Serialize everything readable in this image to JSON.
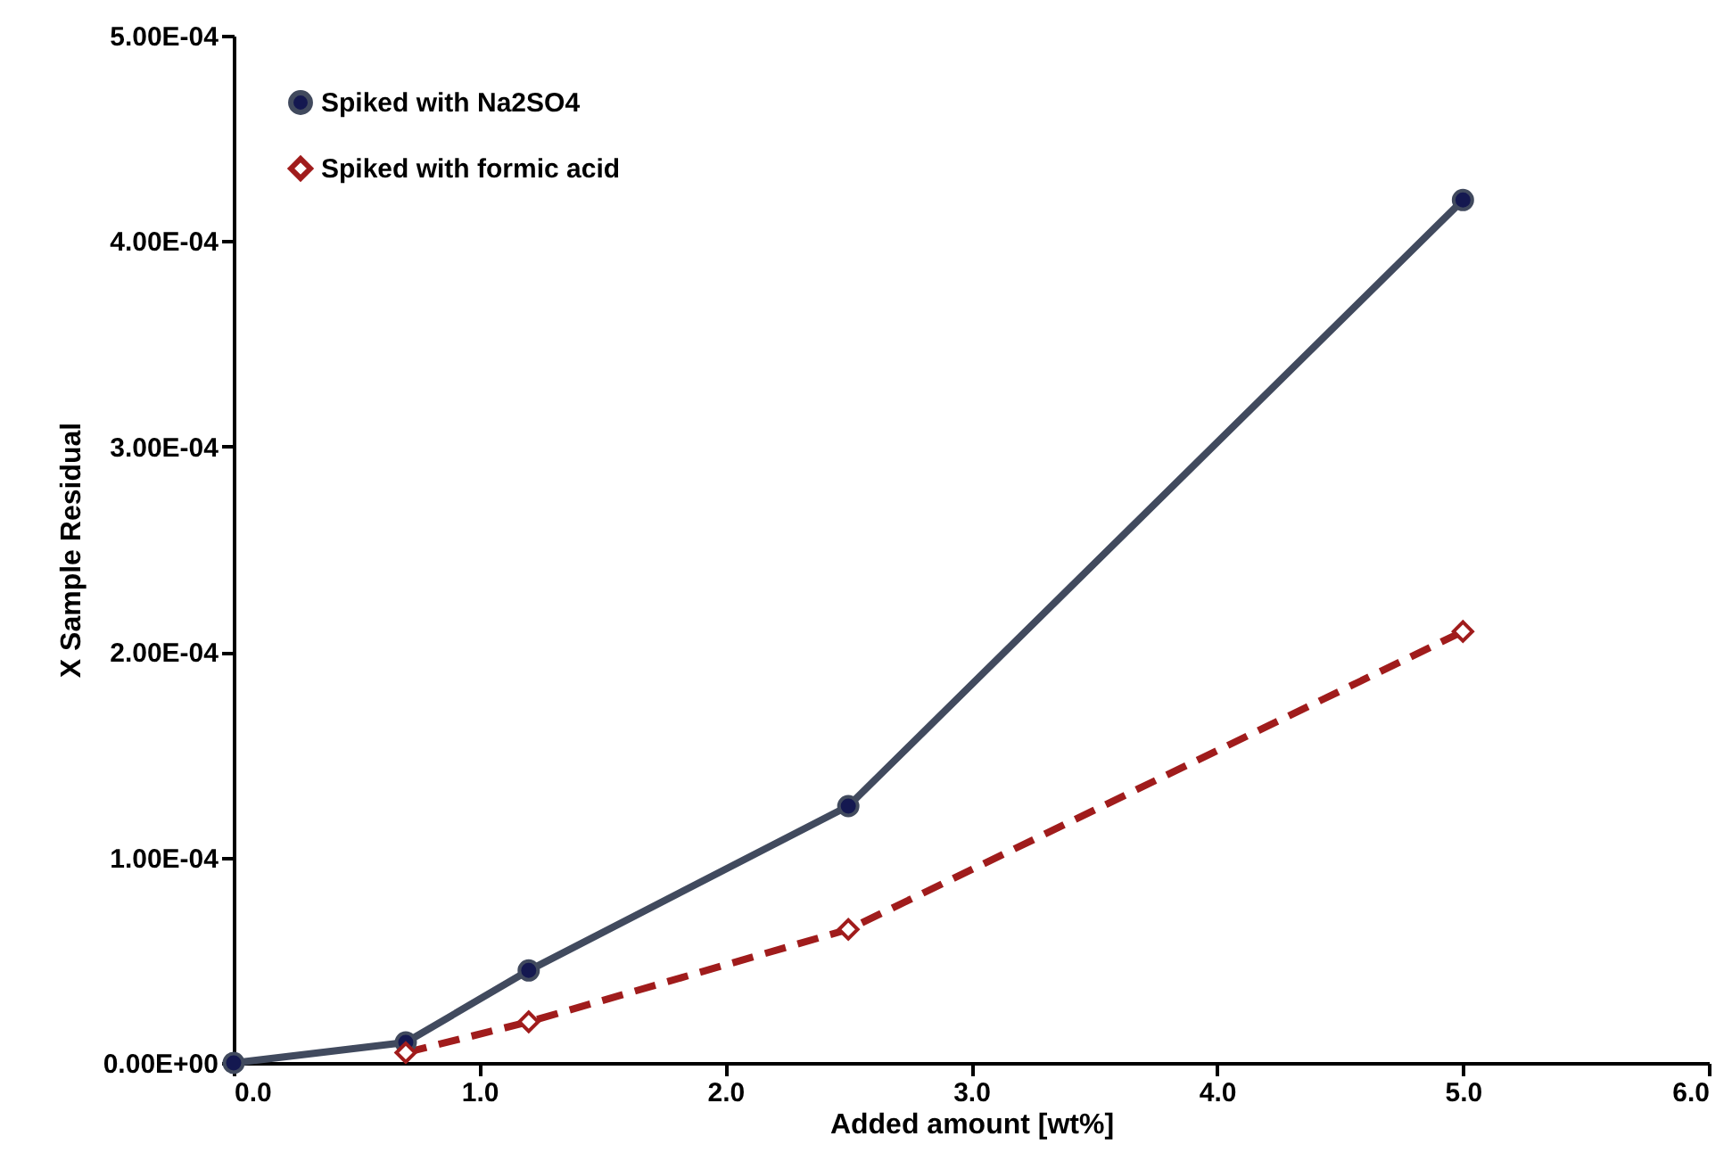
{
  "chart_data": {
    "type": "line",
    "xlabel": "Added amount [wt%]",
    "ylabel": "X Sample Residual",
    "xlim": [
      0,
      6
    ],
    "xticks": [
      {
        "value": 0,
        "label": "0.0"
      },
      {
        "value": 1,
        "label": "1.0"
      },
      {
        "value": 2,
        "label": "2.0"
      },
      {
        "value": 3,
        "label": "3.0"
      },
      {
        "value": 4,
        "label": "4.0"
      },
      {
        "value": 5,
        "label": "5.0"
      },
      {
        "value": 6,
        "label": "6.0"
      }
    ],
    "ylim": [
      0,
      0.0005
    ],
    "yticks": [
      {
        "value": 0,
        "label": "0.00E+00"
      },
      {
        "value": 0.0001,
        "label": "1.00E-04"
      },
      {
        "value": 0.0002,
        "label": "2.00E-04"
      },
      {
        "value": 0.0003,
        "label": "3.00E-04"
      },
      {
        "value": 0.0004,
        "label": "4.00E-04"
      },
      {
        "value": 0.0005,
        "label": "5.00E-04"
      }
    ],
    "grid": false,
    "legend": "top left",
    "series": [
      {
        "name": "Spiked with Na2SO4",
        "color": "#414a5e",
        "marker": "circle",
        "line_style": "solid",
        "x": [
          0,
          0.7,
          1.2,
          2.5,
          5.0
        ],
        "values": [
          0,
          1e-05,
          4.5e-05,
          0.000125,
          0.00042
        ]
      },
      {
        "name": "Spiked with formic acid",
        "color": "#a01c1c",
        "marker": "diamond",
        "line_style": "dashed",
        "x": [
          0.7,
          1.2,
          2.5,
          5.0
        ],
        "values": [
          5e-06,
          2e-05,
          6.5e-05,
          0.00021
        ]
      }
    ]
  }
}
